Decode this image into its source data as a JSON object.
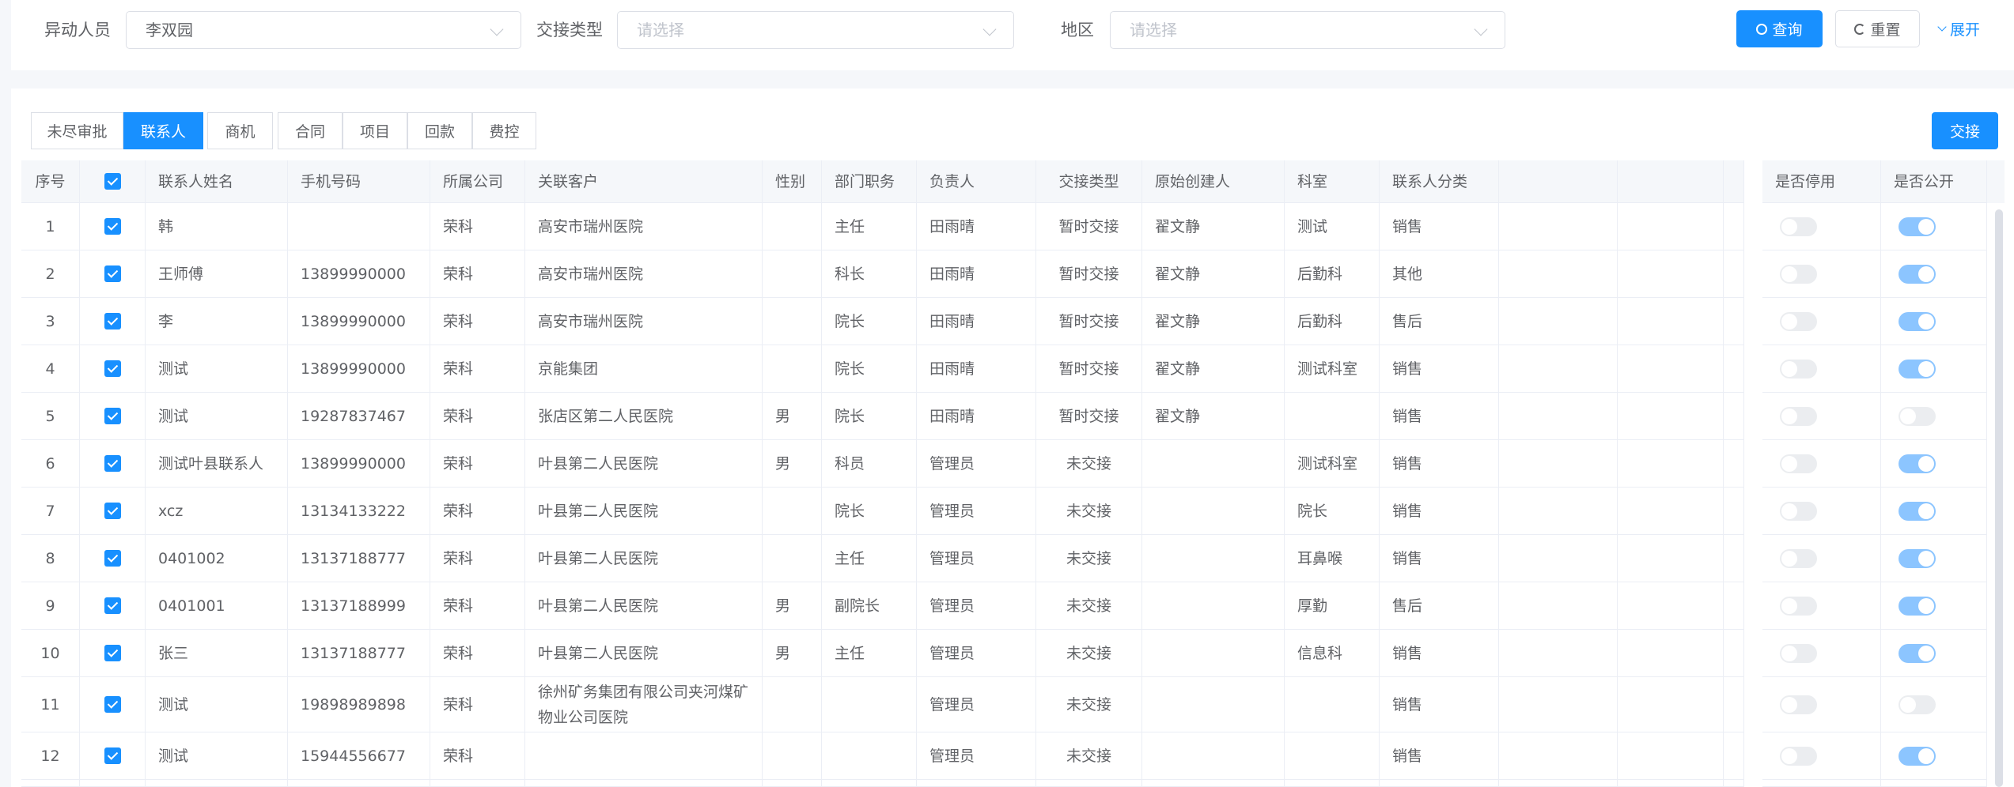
{
  "filters": {
    "person_label": "异动人员",
    "person_value": "李双园",
    "type_label": "交接类型",
    "type_placeholder": "请选择",
    "region_label": "地区",
    "region_placeholder": "请选择",
    "query": "查询",
    "reset": "重置",
    "expand": "展开"
  },
  "tabs": [
    {
      "label": "未尽审批"
    },
    {
      "label": "联系人",
      "active": true
    },
    {
      "label": "商机"
    },
    {
      "label": "合同"
    },
    {
      "label": "项目"
    },
    {
      "label": "回款"
    },
    {
      "label": "费控"
    }
  ],
  "handover_button": "交接",
  "colors": {
    "primary": "#1890ff",
    "toggle_on": "#8cc5ff",
    "toggle_off": "#ebedf0"
  },
  "table": {
    "headers": [
      "序号",
      "",
      "联系人姓名",
      "手机号码",
      "所属公司",
      "关联客户",
      "性别",
      "部门职务",
      "负责人",
      "交接类型",
      "原始创建人",
      "科室",
      "联系人分类",
      "",
      ""
    ],
    "fixed_headers": [
      "是否停用",
      "是否公开"
    ],
    "rows": [
      {
        "cells": [
          "1",
          "",
          "韩",
          "",
          "荣科",
          "高安市瑞州医院",
          "",
          "主任",
          "田雨晴",
          "暂时交接",
          "翟文静",
          "测试",
          "销售",
          "",
          ""
        ],
        "disabled": false,
        "public": true
      },
      {
        "cells": [
          "2",
          "",
          "王师傅",
          "13899990000",
          "荣科",
          "高安市瑞州医院",
          "",
          "科长",
          "田雨晴",
          "暂时交接",
          "翟文静",
          "后勤科",
          "其他",
          "",
          ""
        ],
        "disabled": false,
        "public": true
      },
      {
        "cells": [
          "3",
          "",
          "李",
          "13899990000",
          "荣科",
          "高安市瑞州医院",
          "",
          "院长",
          "田雨晴",
          "暂时交接",
          "翟文静",
          "后勤科",
          "售后",
          "",
          ""
        ],
        "disabled": false,
        "public": true
      },
      {
        "cells": [
          "4",
          "",
          "测试",
          "13899990000",
          "荣科",
          "京能集团",
          "",
          "院长",
          "田雨晴",
          "暂时交接",
          "翟文静",
          "测试科室",
          "销售",
          "",
          ""
        ],
        "disabled": false,
        "public": true
      },
      {
        "cells": [
          "5",
          "",
          "测试",
          "19287837467",
          "荣科",
          "张店区第二人民医院",
          "男",
          "院长",
          "田雨晴",
          "暂时交接",
          "翟文静",
          "",
          "销售",
          "",
          ""
        ],
        "disabled": false,
        "public": false
      },
      {
        "cells": [
          "6",
          "",
          "测试叶县联系人",
          "13899990000",
          "荣科",
          "叶县第二人民医院",
          "男",
          "科员",
          "管理员",
          "未交接",
          "",
          "测试科室",
          "销售",
          "",
          ""
        ],
        "disabled": false,
        "public": true
      },
      {
        "cells": [
          "7",
          "",
          "xcz",
          "13134133222",
          "荣科",
          "叶县第二人民医院",
          "",
          "院长",
          "管理员",
          "未交接",
          "",
          "院长",
          "销售",
          "",
          ""
        ],
        "disabled": false,
        "public": true
      },
      {
        "cells": [
          "8",
          "",
          "0401002",
          "13137188777",
          "荣科",
          "叶县第二人民医院",
          "",
          "主任",
          "管理员",
          "未交接",
          "",
          "耳鼻喉",
          "销售",
          "",
          ""
        ],
        "disabled": false,
        "public": true
      },
      {
        "cells": [
          "9",
          "",
          "0401001",
          "13137188999",
          "荣科",
          "叶县第二人民医院",
          "男",
          "副院长",
          "管理员",
          "未交接",
          "",
          "厚勤",
          "售后",
          "",
          ""
        ],
        "disabled": false,
        "public": true
      },
      {
        "cells": [
          "10",
          "",
          "张三",
          "13137188777",
          "荣科",
          "叶县第二人民医院",
          "男",
          "主任",
          "管理员",
          "未交接",
          "",
          "信息科",
          "销售",
          "",
          ""
        ],
        "disabled": false,
        "public": true
      },
      {
        "cells": [
          "11",
          "",
          "测试",
          "19898989898",
          "荣科",
          "徐州矿务集团有限公司夹河煤矿物业公司医院",
          "",
          "",
          "管理员",
          "未交接",
          "",
          "",
          "销售",
          "",
          ""
        ],
        "disabled": false,
        "public": false
      },
      {
        "cells": [
          "12",
          "",
          "测试",
          "15944556677",
          "荣科",
          "",
          "",
          "",
          "管理员",
          "未交接",
          "",
          "",
          "销售",
          "",
          ""
        ],
        "disabled": false,
        "public": true
      }
    ]
  }
}
